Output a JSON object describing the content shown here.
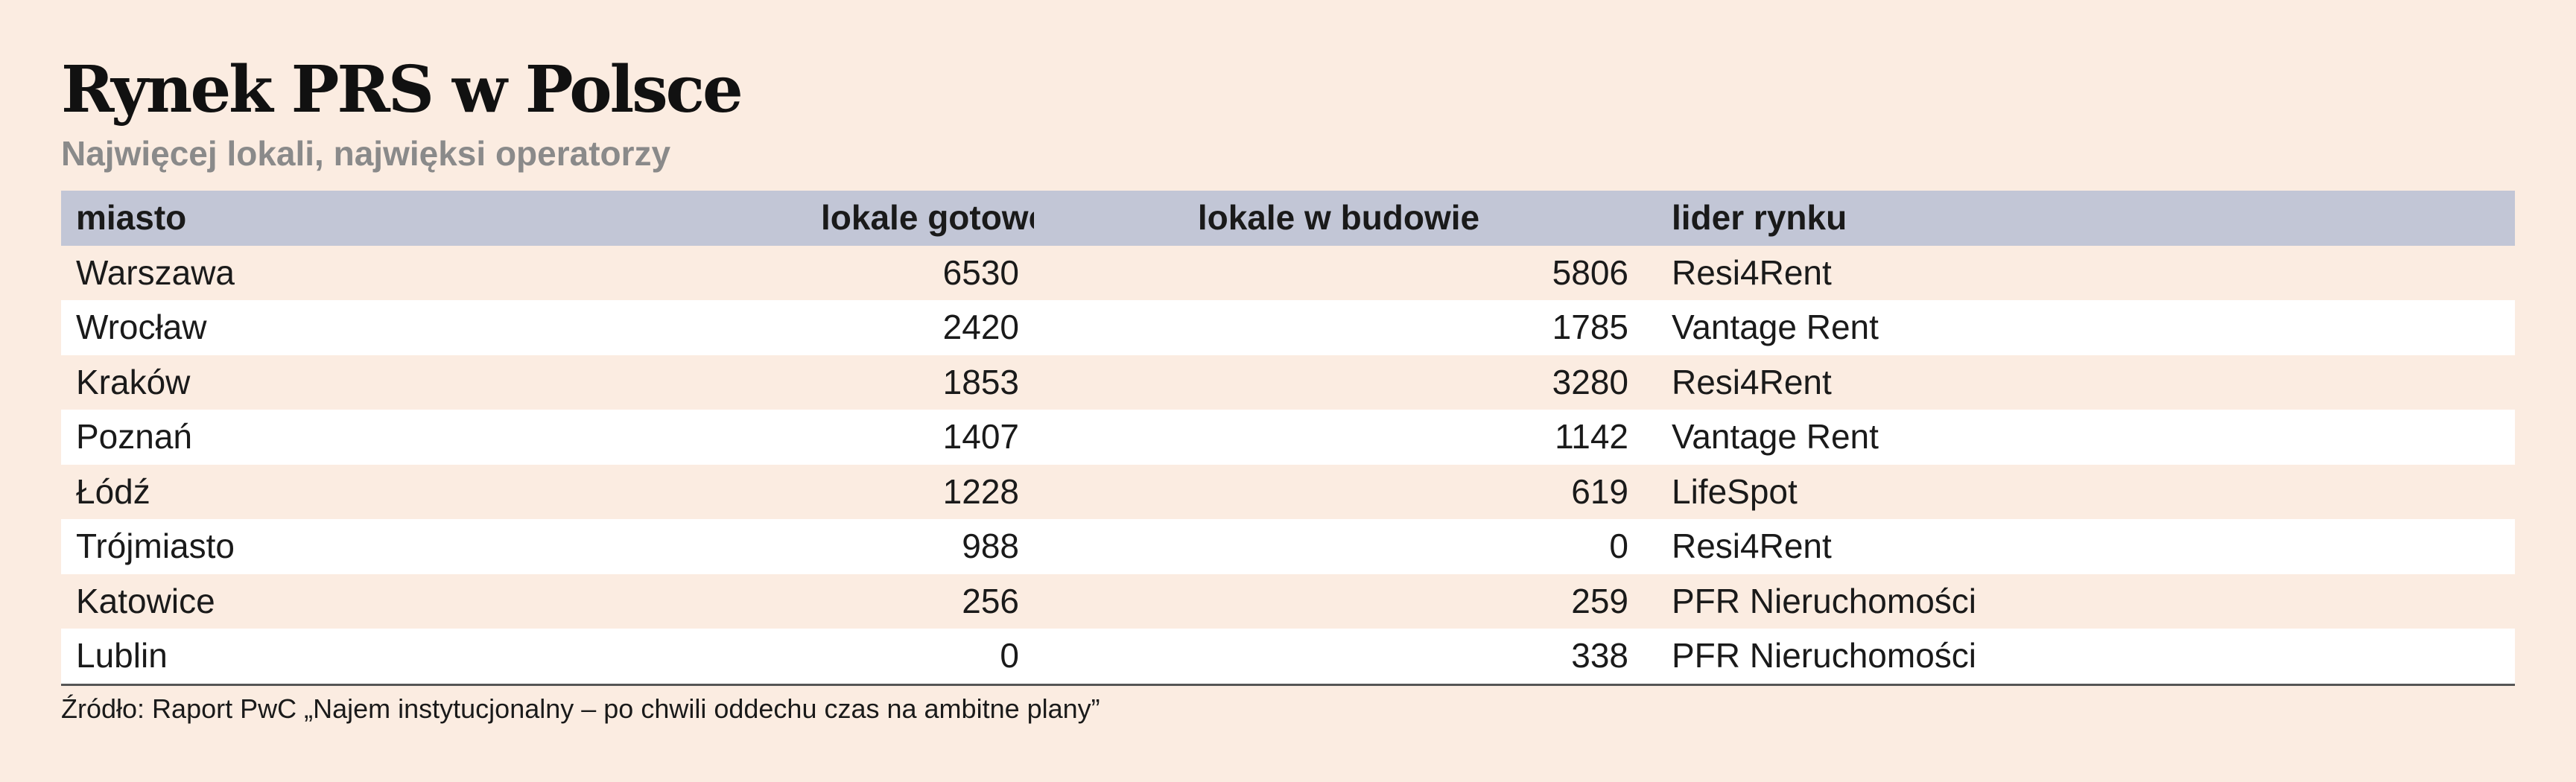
{
  "header": {
    "title": "Rynek PRS w Polsce",
    "subtitle": "Najwięcej lokali, najwięksi operatorzy"
  },
  "footer": {
    "source": "Źródło: Raport PwC „Najem instytucjonalny – po chwili oddechu czas na ambitne plany”"
  },
  "colors": {
    "background": "#fbece1",
    "header_row": "#c2c6d6",
    "alt_row": "#ffffff",
    "subtitle_text": "#8a8a8a"
  },
  "chart_data": {
    "type": "table",
    "title": "Rynek PRS w Polsce",
    "subtitle": "Najwięcej lokali, najwięksi operatorzy",
    "columns": [
      "miasto",
      "lokale gotowe",
      "lokale w budowie",
      "lider rynku"
    ],
    "rows": [
      [
        "Warszawa",
        "6530",
        "5806",
        "Resi4Rent"
      ],
      [
        "Wrocław",
        "2420",
        "1785",
        "Vantage Rent"
      ],
      [
        "Kraków",
        "1853",
        "3280",
        "Resi4Rent"
      ],
      [
        "Poznań",
        "1407",
        "1142",
        "Vantage Rent"
      ],
      [
        "Łódź",
        "1228",
        "619",
        "LifeSpot"
      ],
      [
        "Trójmiasto",
        "988",
        "0",
        "Resi4Rent"
      ],
      [
        "Katowice",
        "256",
        "259",
        "PFR Nieruchomości"
      ],
      [
        "Lublin",
        "0",
        "338",
        "PFR Nieruchomości"
      ]
    ]
  }
}
